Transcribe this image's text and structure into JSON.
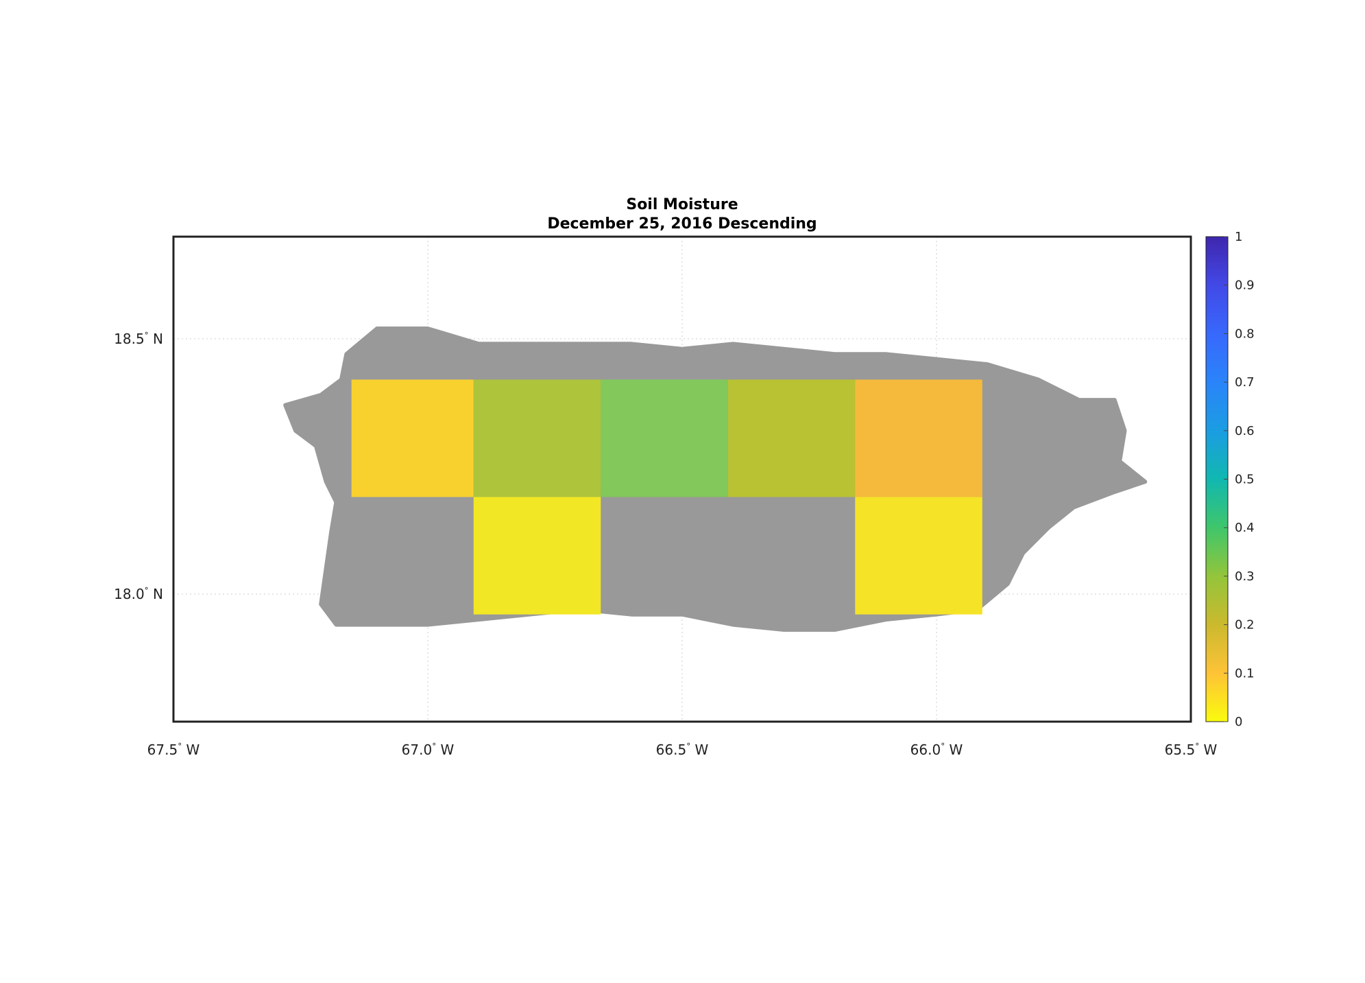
{
  "title": {
    "line1": "Soil Moisture",
    "line2": "December 25, 2016 Descending"
  },
  "axes": {
    "x_ticks": [
      {
        "value": -67.5,
        "label": "67.5",
        "hemi": "W"
      },
      {
        "value": -67.0,
        "label": "67.0",
        "hemi": "W"
      },
      {
        "value": -66.5,
        "label": "66.5",
        "hemi": "W"
      },
      {
        "value": -66.0,
        "label": "66.0",
        "hemi": "W"
      },
      {
        "value": -65.5,
        "label": "65.5",
        "hemi": "W"
      }
    ],
    "y_ticks": [
      {
        "value": 18.5,
        "label": "18.5",
        "hemi": "N"
      },
      {
        "value": 18.0,
        "label": "18.0",
        "hemi": "N"
      }
    ],
    "xlim": [
      -67.5,
      -65.5
    ],
    "ylim": [
      17.75,
      18.7
    ],
    "grid": true
  },
  "colorbar": {
    "ticks": [
      "0",
      "0.1",
      "0.2",
      "0.3",
      "0.4",
      "0.5",
      "0.6",
      "0.7",
      "0.8",
      "0.9",
      "1"
    ],
    "range": [
      0,
      1
    ],
    "colors": [
      "#f9fb0e",
      "#fec337",
      "#cbb92e",
      "#93c53b",
      "#3fc66b",
      "#11b8b0",
      "#1b9de2",
      "#2a84f9",
      "#3868fc",
      "#4249e6",
      "#3f26ad"
    ]
  },
  "chart_data": {
    "type": "heatmap",
    "title": "Soil Moisture / December 25, 2016 Descending",
    "xlabel": "",
    "ylabel": "",
    "no_data_color": "#999999",
    "cells": [
      {
        "lon_min": -67.15,
        "lon_max": -66.91,
        "lat_min": 18.19,
        "lat_max": 18.42,
        "value": 0.13,
        "color": "#f9d12f"
      },
      {
        "lon_min": -66.91,
        "lon_max": -66.66,
        "lat_min": 18.19,
        "lat_max": 18.42,
        "value": 0.3,
        "color": "#adc43b"
      },
      {
        "lon_min": -66.66,
        "lon_max": -66.41,
        "lat_min": 18.19,
        "lat_max": 18.42,
        "value": 0.36,
        "color": "#82c85a"
      },
      {
        "lon_min": -66.41,
        "lon_max": -66.16,
        "lat_min": 18.19,
        "lat_max": 18.42,
        "value": 0.28,
        "color": "#b9c232"
      },
      {
        "lon_min": -66.16,
        "lon_max": -65.91,
        "lat_min": 18.19,
        "lat_max": 18.42,
        "value": 0.18,
        "color": "#f5ba3c"
      },
      {
        "lon_min": -66.91,
        "lon_max": -66.66,
        "lat_min": 17.96,
        "lat_max": 18.19,
        "value": 0.02,
        "color": "#f2e724"
      },
      {
        "lon_min": -66.16,
        "lon_max": -65.91,
        "lat_min": 17.96,
        "lat_max": 18.19,
        "value": 0.03,
        "color": "#f5e327"
      }
    ],
    "land_outline": [
      [
        -67.28,
        18.37
      ],
      [
        -67.21,
        18.39
      ],
      [
        -67.17,
        18.42
      ],
      [
        -67.16,
        18.47
      ],
      [
        -67.1,
        18.52
      ],
      [
        -67.0,
        18.52
      ],
      [
        -66.9,
        18.49
      ],
      [
        -66.8,
        18.49
      ],
      [
        -66.7,
        18.49
      ],
      [
        -66.6,
        18.49
      ],
      [
        -66.5,
        18.48
      ],
      [
        -66.4,
        18.49
      ],
      [
        -66.3,
        18.48
      ],
      [
        -66.2,
        18.47
      ],
      [
        -66.1,
        18.47
      ],
      [
        -66.0,
        18.46
      ],
      [
        -65.9,
        18.45
      ],
      [
        -65.8,
        18.42
      ],
      [
        -65.72,
        18.38
      ],
      [
        -65.65,
        18.38
      ],
      [
        -65.63,
        18.32
      ],
      [
        -65.64,
        18.26
      ],
      [
        -65.59,
        18.22
      ],
      [
        -65.65,
        18.2
      ],
      [
        -65.73,
        18.17
      ],
      [
        -65.78,
        18.13
      ],
      [
        -65.83,
        18.08
      ],
      [
        -65.86,
        18.02
      ],
      [
        -65.92,
        17.97
      ],
      [
        -66.0,
        17.96
      ],
      [
        -66.1,
        17.95
      ],
      [
        -66.2,
        17.93
      ],
      [
        -66.3,
        17.93
      ],
      [
        -66.4,
        17.94
      ],
      [
        -66.5,
        17.96
      ],
      [
        -66.6,
        17.96
      ],
      [
        -66.7,
        17.97
      ],
      [
        -66.8,
        17.96
      ],
      [
        -66.9,
        17.95
      ],
      [
        -67.0,
        17.94
      ],
      [
        -67.1,
        17.94
      ],
      [
        -67.18,
        17.94
      ],
      [
        -67.21,
        17.98
      ],
      [
        -67.2,
        18.05
      ],
      [
        -67.19,
        18.12
      ],
      [
        -67.18,
        18.18
      ],
      [
        -67.2,
        18.22
      ],
      [
        -67.22,
        18.29
      ],
      [
        -67.26,
        18.32
      ]
    ]
  }
}
